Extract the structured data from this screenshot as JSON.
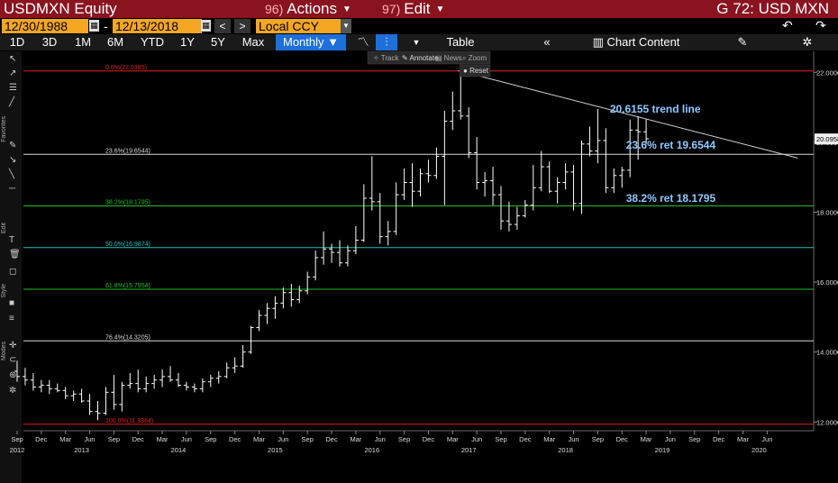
{
  "header": {
    "ticker": "USDMXN Equity",
    "actions_num": "96)",
    "actions_label": "Actions",
    "edit_num": "97)",
    "edit_label": "Edit",
    "chart_title": "G 72: USD MXN",
    "start_date": "12/30/1988",
    "end_date": "12/13/2018",
    "currency": "Local CCY"
  },
  "toolbar": {
    "ranges": [
      "1D",
      "3D",
      "1M",
      "6M",
      "YTD",
      "1Y",
      "5Y",
      "Max"
    ],
    "frequency": "Monthly",
    "table_label": "Table",
    "chart_content_label": "Chart Content"
  },
  "subtools": {
    "track": "Track",
    "annotate": "Annotate",
    "news": "News",
    "zoom": "Zoom",
    "reset": "Reset"
  },
  "sidebar_labels": {
    "favorites": "Favorites",
    "edit": "Edit",
    "style": "Style",
    "modes": "Modes"
  },
  "colors": {
    "titlebar": "#8a1320",
    "accent": "#1e6fd9",
    "date_box": "#f5a623",
    "annotation": "#8ec9ff"
  },
  "chart_data": {
    "type": "ohlc",
    "frequency": "Monthly",
    "ylim": [
      11.75,
      22.6
    ],
    "y_ticks": [
      12,
      14,
      16,
      18,
      20,
      22
    ],
    "y_tick_labels": [
      "12.0000",
      "14.0000",
      "16.0000",
      "18.0000",
      "20.0000",
      "22.0000"
    ],
    "last_price_label": "20.0958",
    "last_price": 20.0958,
    "x_tick_labels": [
      "Sep",
      "Dec",
      "Mar",
      "Jun",
      "Sep",
      "Dec",
      "Mar",
      "Jun",
      "Sep",
      "Dec",
      "Mar",
      "Jun",
      "Sep",
      "Dec",
      "Mar",
      "Jun",
      "Sep",
      "Dec",
      "Mar",
      "Jun",
      "Sep",
      "Dec",
      "Mar",
      "Jun",
      "Sep",
      "Dec",
      "Mar",
      "Jun",
      "Sep",
      "Dec",
      "Mar",
      "Jun"
    ],
    "x_tick_index": [
      0,
      3,
      6,
      9,
      12,
      15,
      18,
      21,
      24,
      27,
      30,
      33,
      36,
      39,
      42,
      45,
      48,
      51,
      54,
      57,
      60,
      63,
      66,
      69,
      72,
      75,
      78,
      81,
      84,
      87,
      90,
      93
    ],
    "x_year_labels": [
      "2012",
      "2013",
      "2014",
      "2015",
      "2016",
      "2017",
      "2018",
      "2019",
      "2020"
    ],
    "x_year_index": [
      0,
      8,
      20,
      32,
      44,
      56,
      68,
      80,
      92
    ],
    "x_range": [
      -1,
      97
    ],
    "bars": [
      {
        "o": 13.45,
        "h": 13.75,
        "l": 13.15,
        "c": 13.3
      },
      {
        "o": 13.3,
        "h": 13.55,
        "l": 13.05,
        "c": 13.2
      },
      {
        "o": 13.2,
        "h": 13.4,
        "l": 12.9,
        "c": 13.0
      },
      {
        "o": 13.0,
        "h": 13.2,
        "l": 12.85,
        "c": 13.05
      },
      {
        "o": 13.05,
        "h": 13.2,
        "l": 12.8,
        "c": 12.95
      },
      {
        "o": 12.95,
        "h": 13.1,
        "l": 12.85,
        "c": 12.9
      },
      {
        "o": 12.9,
        "h": 13.0,
        "l": 12.65,
        "c": 12.75
      },
      {
        "o": 12.75,
        "h": 12.9,
        "l": 12.6,
        "c": 12.8
      },
      {
        "o": 12.8,
        "h": 12.95,
        "l": 12.55,
        "c": 12.6
      },
      {
        "o": 12.6,
        "h": 12.8,
        "l": 12.2,
        "c": 12.3
      },
      {
        "o": 12.3,
        "h": 12.6,
        "l": 12.05,
        "c": 12.25
      },
      {
        "o": 12.25,
        "h": 13.0,
        "l": 12.2,
        "c": 12.85
      },
      {
        "o": 12.85,
        "h": 13.35,
        "l": 12.35,
        "c": 12.5
      },
      {
        "o": 12.5,
        "h": 13.15,
        "l": 12.3,
        "c": 13.05
      },
      {
        "o": 13.05,
        "h": 13.4,
        "l": 12.95,
        "c": 13.1
      },
      {
        "o": 13.1,
        "h": 13.5,
        "l": 12.85,
        "c": 12.95
      },
      {
        "o": 12.95,
        "h": 13.3,
        "l": 12.85,
        "c": 13.1
      },
      {
        "o": 13.1,
        "h": 13.35,
        "l": 12.95,
        "c": 13.2
      },
      {
        "o": 13.2,
        "h": 13.5,
        "l": 13.0,
        "c": 13.3
      },
      {
        "o": 13.3,
        "h": 13.6,
        "l": 13.15,
        "c": 13.2
      },
      {
        "o": 13.2,
        "h": 13.4,
        "l": 13.0,
        "c": 13.05
      },
      {
        "o": 13.05,
        "h": 13.15,
        "l": 12.9,
        "c": 13.0
      },
      {
        "o": 13.0,
        "h": 13.1,
        "l": 12.85,
        "c": 12.95
      },
      {
        "o": 12.95,
        "h": 13.25,
        "l": 12.85,
        "c": 13.15
      },
      {
        "o": 13.15,
        "h": 13.35,
        "l": 13.0,
        "c": 13.25
      },
      {
        "o": 13.25,
        "h": 13.45,
        "l": 13.1,
        "c": 13.3
      },
      {
        "o": 13.3,
        "h": 13.7,
        "l": 13.25,
        "c": 13.55
      },
      {
        "o": 13.55,
        "h": 13.85,
        "l": 13.4,
        "c": 13.6
      },
      {
        "o": 13.6,
        "h": 14.2,
        "l": 13.55,
        "c": 14.0
      },
      {
        "o": 14.0,
        "h": 14.75,
        "l": 13.95,
        "c": 14.7
      },
      {
        "o": 14.7,
        "h": 15.2,
        "l": 14.6,
        "c": 15.05
      },
      {
        "o": 15.05,
        "h": 15.4,
        "l": 14.8,
        "c": 15.25
      },
      {
        "o": 15.25,
        "h": 15.6,
        "l": 14.95,
        "c": 15.4
      },
      {
        "o": 15.4,
        "h": 15.85,
        "l": 15.25,
        "c": 15.7
      },
      {
        "o": 15.7,
        "h": 15.95,
        "l": 15.3,
        "c": 15.5
      },
      {
        "o": 15.5,
        "h": 15.9,
        "l": 15.4,
        "c": 15.75
      },
      {
        "o": 15.75,
        "h": 16.3,
        "l": 15.65,
        "c": 16.15
      },
      {
        "o": 16.15,
        "h": 16.9,
        "l": 16.05,
        "c": 16.7
      },
      {
        "o": 16.7,
        "h": 17.45,
        "l": 16.5,
        "c": 16.95
      },
      {
        "o": 16.95,
        "h": 17.1,
        "l": 16.55,
        "c": 16.85
      },
      {
        "o": 16.85,
        "h": 17.2,
        "l": 16.45,
        "c": 16.55
      },
      {
        "o": 16.55,
        "h": 17.05,
        "l": 16.45,
        "c": 16.9
      },
      {
        "o": 16.9,
        "h": 17.6,
        "l": 16.8,
        "c": 17.2
      },
      {
        "o": 17.2,
        "h": 18.8,
        "l": 17.15,
        "c": 18.4
      },
      {
        "o": 18.4,
        "h": 19.6,
        "l": 18.05,
        "c": 18.3
      },
      {
        "o": 18.3,
        "h": 18.55,
        "l": 17.1,
        "c": 17.3
      },
      {
        "o": 17.3,
        "h": 17.75,
        "l": 17.05,
        "c": 17.45
      },
      {
        "o": 17.45,
        "h": 18.85,
        "l": 17.35,
        "c": 18.5
      },
      {
        "o": 18.5,
        "h": 19.25,
        "l": 18.35,
        "c": 18.85
      },
      {
        "o": 18.85,
        "h": 19.4,
        "l": 18.15,
        "c": 18.6
      },
      {
        "o": 18.6,
        "h": 19.25,
        "l": 18.45,
        "c": 19.1
      },
      {
        "o": 19.1,
        "h": 19.5,
        "l": 18.85,
        "c": 19.05
      },
      {
        "o": 19.05,
        "h": 19.85,
        "l": 18.95,
        "c": 19.6
      },
      {
        "o": 19.6,
        "h": 20.9,
        "l": 18.2,
        "c": 20.6
      },
      {
        "o": 20.6,
        "h": 21.45,
        "l": 20.35,
        "c": 20.9
      },
      {
        "o": 20.9,
        "h": 22.05,
        "l": 20.65,
        "c": 20.75
      },
      {
        "o": 20.75,
        "h": 21.0,
        "l": 19.55,
        "c": 19.7
      },
      {
        "o": 19.7,
        "h": 20.15,
        "l": 18.65,
        "c": 18.85
      },
      {
        "o": 18.85,
        "h": 19.15,
        "l": 18.45,
        "c": 18.9
      },
      {
        "o": 18.9,
        "h": 19.3,
        "l": 18.2,
        "c": 18.5
      },
      {
        "o": 18.5,
        "h": 18.75,
        "l": 17.5,
        "c": 17.75
      },
      {
        "o": 17.75,
        "h": 18.3,
        "l": 17.45,
        "c": 17.65
      },
      {
        "o": 17.65,
        "h": 18.15,
        "l": 17.5,
        "c": 17.9
      },
      {
        "o": 17.9,
        "h": 18.35,
        "l": 17.85,
        "c": 18.2
      },
      {
        "o": 18.2,
        "h": 19.35,
        "l": 18.05,
        "c": 18.7
      },
      {
        "o": 18.7,
        "h": 19.75,
        "l": 18.6,
        "c": 19.3
      },
      {
        "o": 19.3,
        "h": 19.45,
        "l": 18.55,
        "c": 18.6
      },
      {
        "o": 18.6,
        "h": 19.0,
        "l": 18.25,
        "c": 18.85
      },
      {
        "o": 18.85,
        "h": 19.4,
        "l": 18.65,
        "c": 19.15
      },
      {
        "o": 19.15,
        "h": 19.35,
        "l": 18.05,
        "c": 18.25
      },
      {
        "o": 18.25,
        "h": 20.05,
        "l": 17.95,
        "c": 19.95
      },
      {
        "o": 19.95,
        "h": 20.45,
        "l": 19.6,
        "c": 19.75
      },
      {
        "o": 19.75,
        "h": 20.95,
        "l": 19.4,
        "c": 20.05
      },
      {
        "o": 20.05,
        "h": 20.4,
        "l": 18.55,
        "c": 18.7
      },
      {
        "o": 18.7,
        "h": 19.25,
        "l": 18.55,
        "c": 19.05
      },
      {
        "o": 19.05,
        "h": 19.3,
        "l": 18.7,
        "c": 19.2
      },
      {
        "o": 19.2,
        "h": 20.65,
        "l": 19.0,
        "c": 20.35
      },
      {
        "o": 20.35,
        "h": 20.75,
        "l": 19.5,
        "c": 20.3
      },
      {
        "o": 20.3,
        "h": 20.65,
        "l": 19.95,
        "c": 20.1
      }
    ],
    "fib_levels": [
      {
        "label": "0.0%(22.0385)",
        "value": 22.0385,
        "color": "#e02020"
      },
      {
        "label": "23.6%(19.6544)",
        "value": 19.6544,
        "color": "#d8d8d8"
      },
      {
        "label": "38.2%(18.1795)",
        "value": 18.1795,
        "color": "#22c022"
      },
      {
        "label": "50.0%(16.9874)",
        "value": 16.9874,
        "color": "#20c0c0"
      },
      {
        "label": "61.8%(15.7954)",
        "value": 15.7954,
        "color": "#22c022"
      },
      {
        "label": "76.4%(14.3205)",
        "value": 14.3205,
        "color": "#d8d8d8"
      },
      {
        "label": "100.0%(11.9364)",
        "value": 11.9364,
        "color": "#e02020"
      }
    ],
    "trend_line": {
      "x1": 54.7,
      "y1": 22.05,
      "x2": 96.8,
      "y2": 19.55
    },
    "annotations": [
      {
        "text": "20.6155 trend line",
        "x": 73.5,
        "y": 20.85
      },
      {
        "text": "23.6% ret 19.6544",
        "x": 75.5,
        "y": 19.82
      },
      {
        "text": "38.2% ret 18.1795",
        "x": 75.5,
        "y": 18.3
      }
    ]
  }
}
